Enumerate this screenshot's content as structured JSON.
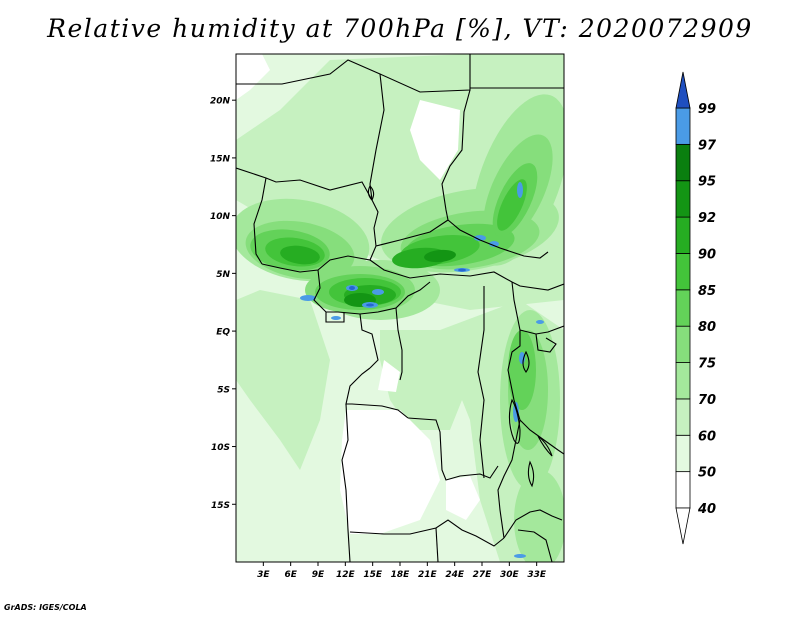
{
  "title": "Relative humidity at 700hPa [%], VT: 2020072909",
  "credit": "GrADS: IGES/COLA",
  "map": {
    "variable": "Relative humidity",
    "level": "700hPa",
    "units": "%",
    "valid_time": "2020072909",
    "lon_range": [
      0,
      36
    ],
    "lat_range": [
      -20,
      24
    ],
    "lat_ticks": [
      {
        "value": 20,
        "label": "20N"
      },
      {
        "value": 15,
        "label": "15N"
      },
      {
        "value": 10,
        "label": "10N"
      },
      {
        "value": 5,
        "label": "5N"
      },
      {
        "value": 0,
        "label": "EQ"
      },
      {
        "value": -5,
        "label": "5S"
      },
      {
        "value": -10,
        "label": "10S"
      },
      {
        "value": -15,
        "label": "15S"
      }
    ],
    "lon_ticks": [
      {
        "value": 3,
        "label": "3E"
      },
      {
        "value": 6,
        "label": "6E"
      },
      {
        "value": 9,
        "label": "9E"
      },
      {
        "value": 12,
        "label": "12E"
      },
      {
        "value": 15,
        "label": "15E"
      },
      {
        "value": 18,
        "label": "18E"
      },
      {
        "value": 21,
        "label": "21E"
      },
      {
        "value": 24,
        "label": "24E"
      },
      {
        "value": 27,
        "label": "27E"
      },
      {
        "value": 30,
        "label": "30E"
      },
      {
        "value": 33,
        "label": "33E"
      }
    ]
  },
  "colorbar": {
    "levels": [
      {
        "label": "40",
        "color": "#ffffff"
      },
      {
        "label": "50",
        "color": "#e3f9e0"
      },
      {
        "label": "60",
        "color": "#c6f1c0"
      },
      {
        "label": "70",
        "color": "#a4e89c"
      },
      {
        "label": "75",
        "color": "#86de7c"
      },
      {
        "label": "80",
        "color": "#63d259"
      },
      {
        "label": "85",
        "color": "#43c43a"
      },
      {
        "label": "90",
        "color": "#26ad22"
      },
      {
        "label": "92",
        "color": "#139514"
      },
      {
        "label": "95",
        "color": "#0a7f0f"
      },
      {
        "label": "97",
        "color": "#4a9be6"
      },
      {
        "label": "99",
        "color": "#2566d0"
      }
    ],
    "top_color": "#1f4fbf",
    "bottom_color": "#ffffff"
  }
}
